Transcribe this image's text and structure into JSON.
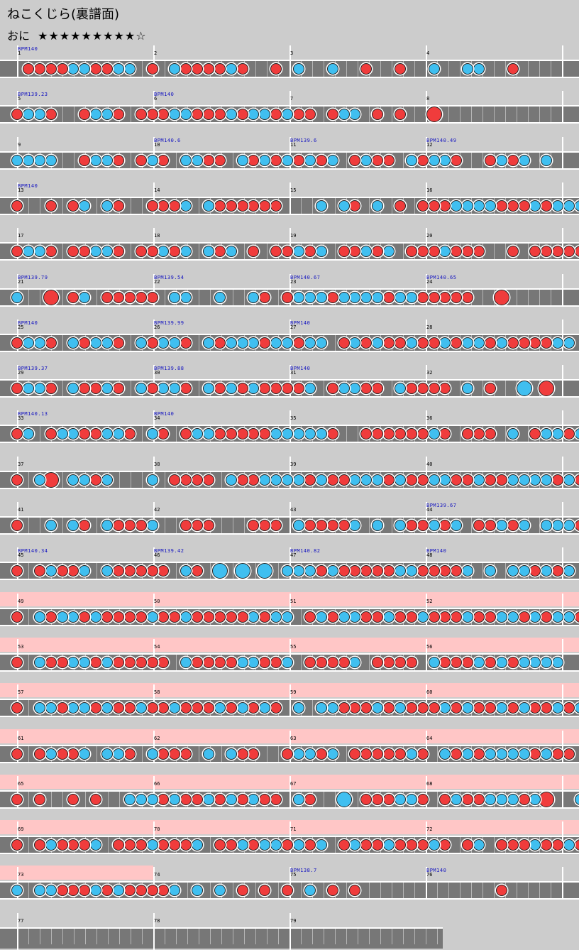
{
  "title": "ねこくじら(裏譜面)",
  "difficulty": {
    "label": "おに",
    "stars": "★★★★★★★★★☆"
  },
  "rows": [
    {
      "measures": [
        "1",
        "2",
        "3",
        "4"
      ],
      "bpm": [
        "BPM140",
        "",
        "",
        ""
      ],
      "gogo": [
        0,
        0,
        0,
        0
      ],
      "notes": "d2d3d4d5k6k7d8d9k10k11d13k15d16d17d18d19k20d21d24k26k29d32d35k38k41k42d45"
    },
    {
      "measures": [
        "5",
        "6",
        "7",
        "8"
      ],
      "bpm": [
        "BPM139.23",
        "BPM140",
        "",
        ""
      ],
      "gogo": [
        0,
        0,
        0,
        0
      ],
      "notes": "d1k2k3d4d7k8k9d10d12d13d14k15k16d17d18d19k20d21k22k23d24k25d26d27d29k30k31d33d35D38"
    },
    {
      "measures": [
        "9",
        "10",
        "11",
        "12"
      ],
      "bpm": [
        "",
        "BPM140.6",
        "BPM139.6",
        "BPM140.49"
      ],
      "gogo": [
        0,
        0,
        0,
        0
      ],
      "notes": "k1k2k3k4d7k8k9d10d12k13d14k16k17d18d19k21d22k23d24k25d26k27d28k29d31k32d33d34k36d37k38k39d40d43k44d45k46k48"
    },
    {
      "measures": [
        "13",
        "14",
        "15",
        "16"
      ],
      "bpm": [
        "BPM140",
        "",
        "",
        ""
      ],
      "gogo": [
        0,
        0,
        0,
        0
      ],
      "notes": "d1d4d6k7k9d10d13d14d15k16k18d19d20d21d22d23d24k28k30d31k33d35d37d38d39k40k41k42k43d44d45d46k47d48k49k50k51"
    },
    {
      "measures": [
        "17",
        "18",
        "19",
        "20"
      ],
      "bpm": [
        "",
        "",
        "",
        ""
      ],
      "gogo": [
        0,
        0,
        0,
        0
      ],
      "notes": "d1k2k3d4d6d7k8k9d10d12d13k14d15k16k18d19k20d22d24d25k26d27k28d30d31k32d33k34d36d37d38k39d40d41d42d45d47d48d49d50d51"
    },
    {
      "measures": [
        "21",
        "22",
        "23",
        "24"
      ],
      "bpm": [
        "BPM139.79",
        "BPM139.54",
        "BPM140.67",
        "BPM140.65"
      ],
      "gogo": [
        0,
        0,
        0,
        0
      ],
      "notes": "k1D4d6k7d9d10d11d12d13k15k16k19k22d23d25k26k27k28d29k30k31k32k33d34k35k36d37d38d39d40d41D44"
    },
    {
      "measures": [
        "25",
        "26",
        "27",
        "28"
      ],
      "bpm": [
        "BPM140",
        "BPM139.99",
        "BPM140",
        ""
      ],
      "gogo": [
        0,
        0,
        0,
        0
      ],
      "notes": "d1k2k3d4k6d7k8k9d10k12d13k14k15d16k18d19k20k21k22d23k24k25d26k27k28d30k31d32k33d34d35k36d37d38k39d40k41k42d43k44d45d46d47d48k49k50"
    },
    {
      "measures": [
        "29",
        "30",
        "31",
        "32"
      ],
      "bpm": [
        "BPM139.37",
        "BPM139.88",
        "BPM140",
        ""
      ],
      "gogo": [
        0,
        0,
        0,
        0
      ],
      "notes": "d1k2k3d4k6d7d8k9d10k12d13k14k15d16k18d19k20d21k22d23d24d25d26k27d29k30k31d32d33k35d36d37d38d39k41d43K46D48"
    },
    {
      "measures": [
        "33",
        "34",
        "35",
        "36"
      ],
      "bpm": [
        "BPM140.13",
        "BPM140",
        "",
        ""
      ],
      "gogo": [
        0,
        0,
        0,
        0
      ],
      "notes": "d1k2d4k5k6d7d8k9k10d11k13d14d16k17k18d19d20d21d22d23k24k25k26k27k28d29d32d33d34d35d36d37k38d39d41d42d43k45d47k48k49d50k51"
    },
    {
      "measures": [
        "37",
        "38",
        "39",
        "40"
      ],
      "bpm": [
        "",
        "",
        "",
        ""
      ],
      "gogo": [
        0,
        0,
        0,
        0
      ],
      "notes": "d1k3D4k6k7d8k9k13d15d16d17d18k20d21d22k23k24k25k26d27k28d29d30k31k32k33d34k35d36d37k38k39d40d41k42d43d44k45k46k47k48d49k50d51"
    },
    {
      "measures": [
        "41",
        "42",
        "43",
        "44"
      ],
      "bpm": [
        "",
        "",
        "",
        "BPM139.67"
      ],
      "gogo": [
        0,
        0,
        0,
        0
      ],
      "notes": "d1k4k6d7k9d10d11d12k13d16d17d18d22d23d24k26d27d28d29d30k31k33k35d36d37k38d39k40d42d43k44d45k46k48k49k50d51"
    },
    {
      "measures": [
        "45",
        "46",
        "47",
        "48"
      ],
      "bpm": [
        "BPM140.34",
        "BPM139.42",
        "BPM140.82",
        "BPM140"
      ],
      "gogo": [
        0,
        0,
        0,
        0
      ],
      "notes": "d1d3k4d5d6k7k9d10d11d12d13d14k16d17K19K21K23k25k26k27d28k29d30d31d32d33d34k35k36d37d38d39d40k41k43k45k46d47k48d49k50"
    },
    {
      "measures": [
        "49",
        "50",
        "51",
        "52"
      ],
      "bpm": [
        "",
        "",
        "",
        ""
      ],
      "gogo": [
        1,
        1,
        1,
        1
      ],
      "notes": "d1k3d4k5k6d7k8d9d10d11d12k13d14d15k16d17d18d19d20d21k22d23k24k25d27k28d29k30k31d32d33k34d35d36k37d38d39d40k41d42d43k44k45d46k47d48k49k50d51"
    },
    {
      "measures": [
        "53",
        "54",
        "55",
        "56"
      ],
      "bpm": [
        "",
        "",
        "",
        ""
      ],
      "gogo": [
        1,
        1,
        1,
        1
      ],
      "notes": "d1k3d4d5k6k7d8k9d10d11d12d13d14k16d17d18d19d20k21k22d23d24k25d27d28d29d30k31d33d34d35d36k38d39d40d41k42d43k44d45k46k47k48k49"
    },
    {
      "measures": [
        "57",
        "58",
        "59",
        "60"
      ],
      "bpm": [
        "",
        "",
        "",
        ""
      ],
      "gogo": [
        1,
        1,
        1,
        1
      ],
      "notes": "d1k3k4d5k6k7d8k9d10d11k12d13d14k15d16d17d18k19d20k21d22k23d24k26k28k29d30d31d32k33d34k35d36d37d38k39d40k41d42d43k44d45k46d47d48k49d50k51"
    },
    {
      "measures": [
        "61",
        "62",
        "63",
        "64"
      ],
      "bpm": [
        "",
        "",
        "",
        ""
      ],
      "gogo": [
        1,
        1,
        1,
        1
      ],
      "notes": "d1d3k4d5d6k7k9k10d11k13d14d15d16k18k20d21d22d25k26k27d28k29d31d32d33d34d35k36d37k39d40k41d42k43k44k45k46d47k48d49d50"
    },
    {
      "measures": [
        "65",
        "66",
        "67",
        "68"
      ],
      "bpm": [
        "",
        "",
        "",
        ""
      ],
      "gogo": [
        1,
        1,
        1,
        1
      ],
      "notes": "d1d3d6d8k11k12k13d14k15d16d17k18d19k20d21k22d23d24k26d27K30d32d33d34k35k36d37d39k40d41d42k43k44k45d46k47D48k51"
    },
    {
      "measures": [
        "69",
        "70",
        "71",
        "72"
      ],
      "bpm": [
        "",
        "",
        "",
        ""
      ],
      "gogo": [
        1,
        1,
        1,
        1
      ],
      "notes": "d1d3k4d5d6d7k8d10d11d12k13d14d15d16k17d19d20k21d22k23k24d25k26d27k28d30k31d32d33k34d35d36d37k38d39d41k42d44d45d46k47d48d49k50d51"
    },
    {
      "measures": [
        "73",
        "74",
        "75",
        "76"
      ],
      "bpm": [
        "",
        "",
        "BPM138.7",
        "BPM140"
      ],
      "gogo": [
        1,
        0,
        0,
        0
      ],
      "notes": "k1k3k4d5d6d7k8d9k10d11d12d13d14k15k17k19d21d23d25k27d29d31d44"
    },
    {
      "measures": [
        "77",
        "78",
        "79"
      ],
      "bpm": [
        "",
        "",
        ""
      ],
      "gogo": [
        0,
        0,
        0
      ],
      "notes": ""
    }
  ]
}
